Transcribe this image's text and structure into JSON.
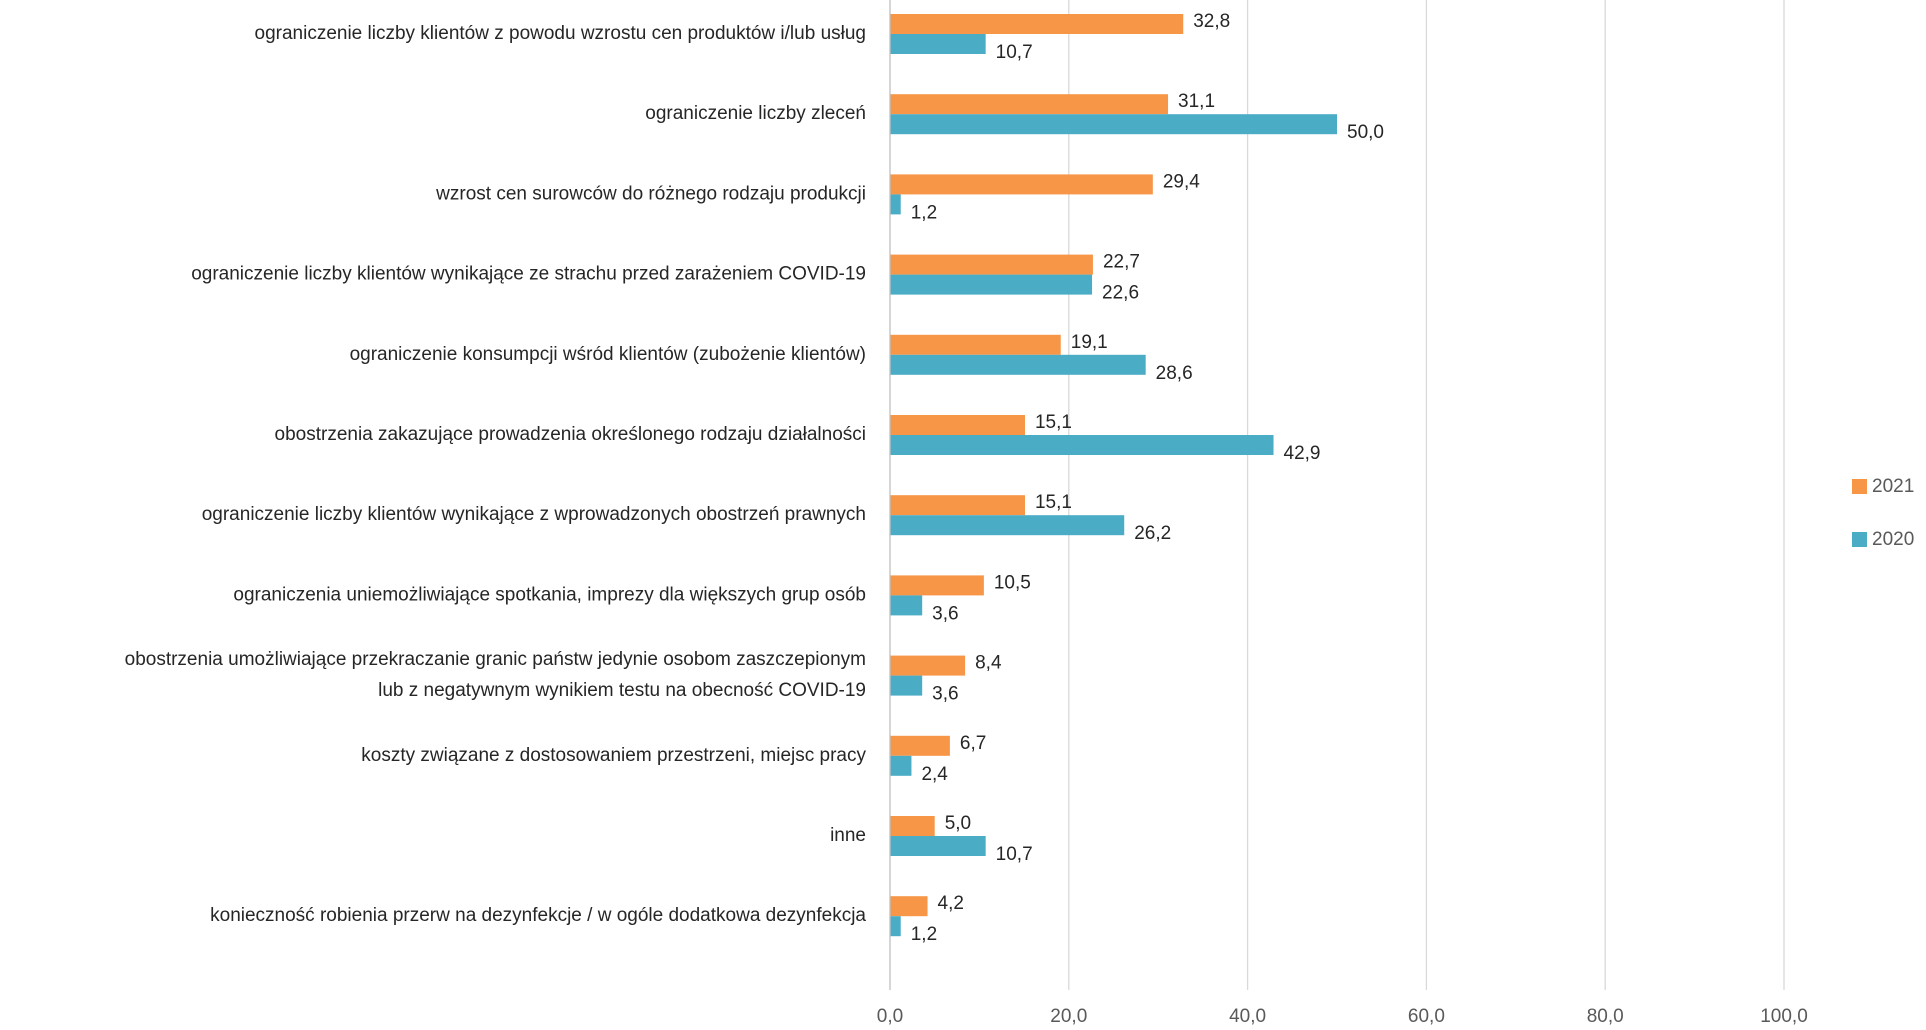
{
  "chart_data": {
    "type": "bar",
    "orientation": "horizontal",
    "categories": [
      "ograniczenie liczby klientów z powodu wzrostu cen produktów i/lub usług",
      "ograniczenie liczby zleceń",
      "wzrost cen surowców do różnego rodzaju produkcji",
      "ograniczenie liczby klientów wynikające ze strachu przed zarażeniem COVID-19",
      "ograniczenie konsumpcji wśród klientów (zubożenie klientów)",
      "obostrzenia zakazujące prowadzenia określonego rodzaju działalności",
      "ograniczenie liczby klientów wynikające z wprowadzonych obostrzeń prawnych",
      "ograniczenia uniemożliwiające spotkania, imprezy dla większych grup osób",
      "obostrzenia umożliwiające przekraczanie granic państw jedynie osobom zaszczepionym\nlub z negatywnym wynikiem testu na obecność COVID-19",
      "koszty związane z dostosowaniem przestrzeni, miejsc pracy",
      "inne",
      "konieczność robienia przerw na dezynfekcje / w ogóle dodatkowa dezynfekcja"
    ],
    "series": [
      {
        "name": "2021",
        "color": "#F79646",
        "values": [
          32.8,
          31.1,
          29.4,
          22.7,
          19.1,
          15.1,
          15.1,
          10.5,
          8.4,
          6.7,
          5.0,
          4.2
        ],
        "labels": [
          "32,8",
          "31,1",
          "29,4",
          "22,7",
          "19,1",
          "15,1",
          "15,1",
          "10,5",
          "8,4",
          "6,7",
          "5,0",
          "4,2"
        ]
      },
      {
        "name": "2020",
        "color": "#4BACC6",
        "values": [
          10.7,
          50.0,
          1.2,
          22.6,
          28.6,
          42.9,
          26.2,
          3.6,
          3.6,
          2.4,
          10.7,
          1.2
        ],
        "labels": [
          "10,7",
          "50,0",
          "1,2",
          "22,6",
          "28,6",
          "42,9",
          "26,2",
          "3,6",
          "3,6",
          "2,4",
          "10,7",
          "1,2"
        ]
      }
    ],
    "xlim": [
      0,
      100
    ],
    "xticks": [
      0,
      20,
      40,
      60,
      80,
      100
    ],
    "xtick_labels": [
      "0,0",
      "20,0",
      "40,0",
      "60,0",
      "80,0",
      "100,0"
    ],
    "grid": "vertical",
    "legend": {
      "position": "right",
      "order": [
        "2021",
        "2020"
      ]
    },
    "gridline_color": "#D9D9D9",
    "title": "",
    "xlabel": "",
    "ylabel": ""
  }
}
